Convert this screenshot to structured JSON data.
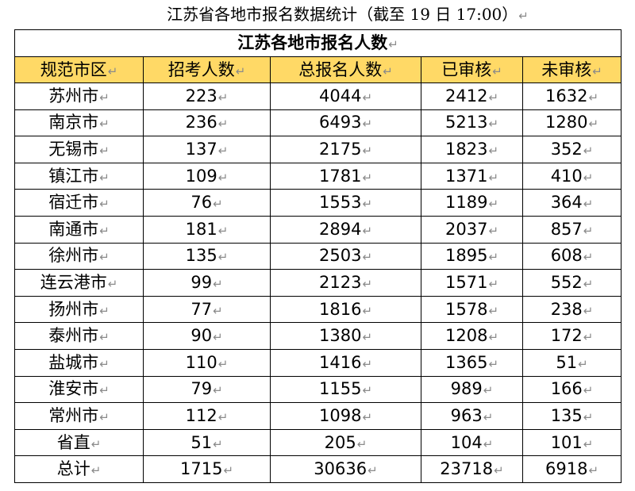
{
  "document": {
    "title": "江苏省各地市报名数据统计（截至 19 日 17:00）",
    "paragraph_mark": "↵"
  },
  "table": {
    "caption": "江苏各地市报名人数",
    "columns": [
      "规范市区",
      "招考人数",
      "总报名人数",
      "已审核",
      "未审核"
    ],
    "rows": [
      [
        "苏州市",
        223,
        4044,
        2412,
        1632
      ],
      [
        "南京市",
        236,
        6493,
        5213,
        1280
      ],
      [
        "无锡市",
        137,
        2175,
        1823,
        352
      ],
      [
        "镇江市",
        109,
        1781,
        1371,
        410
      ],
      [
        "宿迁市",
        76,
        1553,
        1189,
        364
      ],
      [
        "南通市",
        181,
        2894,
        2037,
        857
      ],
      [
        "徐州市",
        135,
        2503,
        1895,
        608
      ],
      [
        "连云港市",
        99,
        2123,
        1571,
        552
      ],
      [
        "扬州市",
        77,
        1816,
        1578,
        238
      ],
      [
        "泰州市",
        90,
        1380,
        1208,
        172
      ],
      [
        "盐城市",
        110,
        1416,
        1365,
        51
      ],
      [
        "淮安市",
        79,
        1155,
        989,
        166
      ],
      [
        "常州市",
        112,
        1098,
        963,
        135
      ],
      [
        "省直",
        51,
        205,
        104,
        101
      ],
      [
        "总计",
        1715,
        30636,
        23718,
        6918
      ]
    ]
  },
  "colors": {
    "header_fill": "#FFD966",
    "border": "#000000",
    "paragraph_mark": "#8a8a8a"
  }
}
